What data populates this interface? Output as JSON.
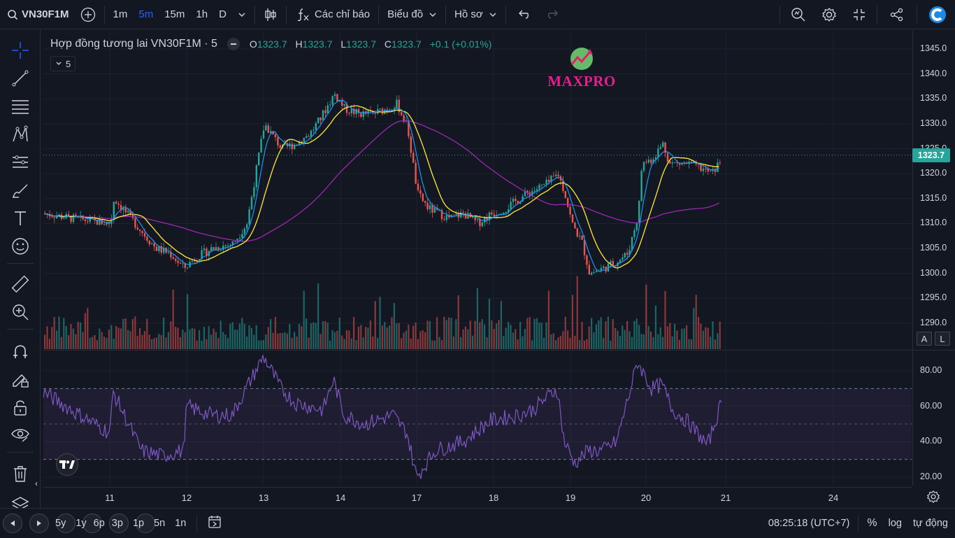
{
  "topbar": {
    "symbol": "VN30F1M",
    "timeframes": [
      "1m",
      "5m",
      "15m",
      "1h",
      "D"
    ],
    "active_timeframe": "5m",
    "indicators_label": "Các chỉ báo",
    "charts_label": "Biểu đồ",
    "profile_label": "Hồ sơ"
  },
  "legend": {
    "title": "Hợp đồng tương lai VN30F1M · 5",
    "o_label": "O",
    "o_value": "1323.7",
    "h_label": "H",
    "h_value": "1323.7",
    "l_label": "L",
    "l_value": "1323.7",
    "c_label": "C",
    "c_value": "1323.7",
    "change": "+0.1 (+0.01%)",
    "collapsed_count": "5"
  },
  "logo_text": "MAXPRO",
  "price_axis": {
    "labels": [
      "1345.0",
      "1340.0",
      "1335.0",
      "1330.0",
      "1325.0",
      "1320.0",
      "1315.0",
      "1310.0",
      "1305.0",
      "1300.0",
      "1295.0",
      "1290.0"
    ],
    "last_price": "1323.7"
  },
  "rsi_axis": {
    "labels": [
      "80.00",
      "60.00",
      "40.00",
      "20.00"
    ]
  },
  "time_axis": {
    "labels": [
      "11",
      "12",
      "13",
      "14",
      "17",
      "18",
      "19",
      "20",
      "21",
      "24"
    ]
  },
  "scale_buttons": {
    "auto": "A",
    "log_toggle": "L"
  },
  "bottombar": {
    "ranges": [
      "5y",
      "1y",
      "6p",
      "3p",
      "1p",
      "5n",
      "1n"
    ],
    "clock": "08:25:18 (UTC+7)",
    "percent": "%",
    "log": "log",
    "auto": "tự động"
  },
  "colors": {
    "up": "#26a69a",
    "down": "#ef5350",
    "ma_fast": "#2196f3",
    "ma_mid": "#ffeb3b",
    "ma_slow": "#9c27b0",
    "rsi": "#7e57c2",
    "accent": "#2962ff"
  },
  "icons": [
    "search-icon",
    "add-icon",
    "candles-icon",
    "fx-icon",
    "chevron-down-icon",
    "undo-icon",
    "redo-icon",
    "quick-search-icon",
    "gear-icon",
    "fullscreen-icon",
    "share-icon",
    "crosshair-icon",
    "trend-line-icon",
    "fib-icon",
    "pattern-icon",
    "forecast-icon",
    "brush-icon",
    "text-icon",
    "emoji-icon",
    "ruler-icon",
    "zoom-in-icon",
    "magnet-icon",
    "lock-draw-icon",
    "lock-icon",
    "eye-icon",
    "trash-icon",
    "layers-icon",
    "replay-icon"
  ]
}
